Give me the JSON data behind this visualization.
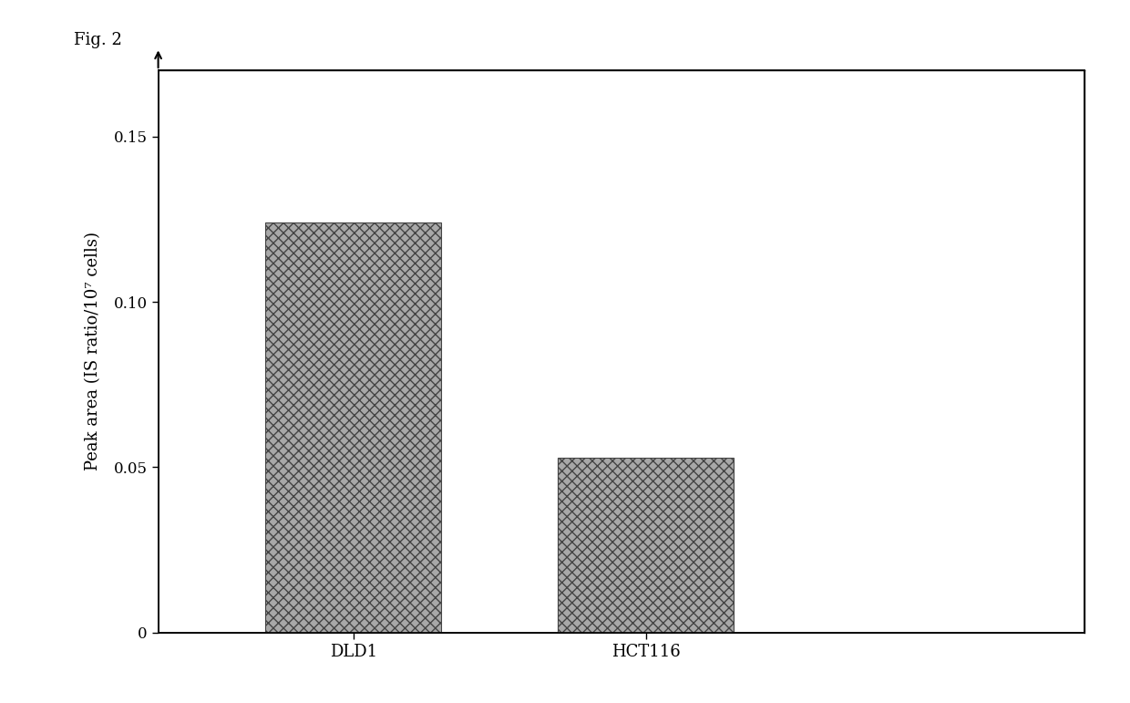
{
  "categories": [
    "DLD1",
    "HCT116"
  ],
  "values": [
    0.124,
    0.053
  ],
  "bar_color": "#a8a8a8",
  "bar_width": 0.18,
  "ylabel": "Peak area (IS ratio/10⁷ cells)",
  "ylim": [
    0,
    0.17
  ],
  "yticks": [
    0,
    0.05,
    0.1,
    0.15
  ],
  "ytick_labels": [
    "0",
    "0.05",
    "0.10",
    "0.15"
  ],
  "fig_label": "Fig. 2",
  "background_color": "#ffffff",
  "bar_edgecolor": "#444444",
  "ylabel_fontsize": 13,
  "tick_fontsize": 12,
  "title_fontsize": 13,
  "x_positions": [
    0.25,
    0.55
  ],
  "xlim": [
    0.05,
    1.0
  ]
}
